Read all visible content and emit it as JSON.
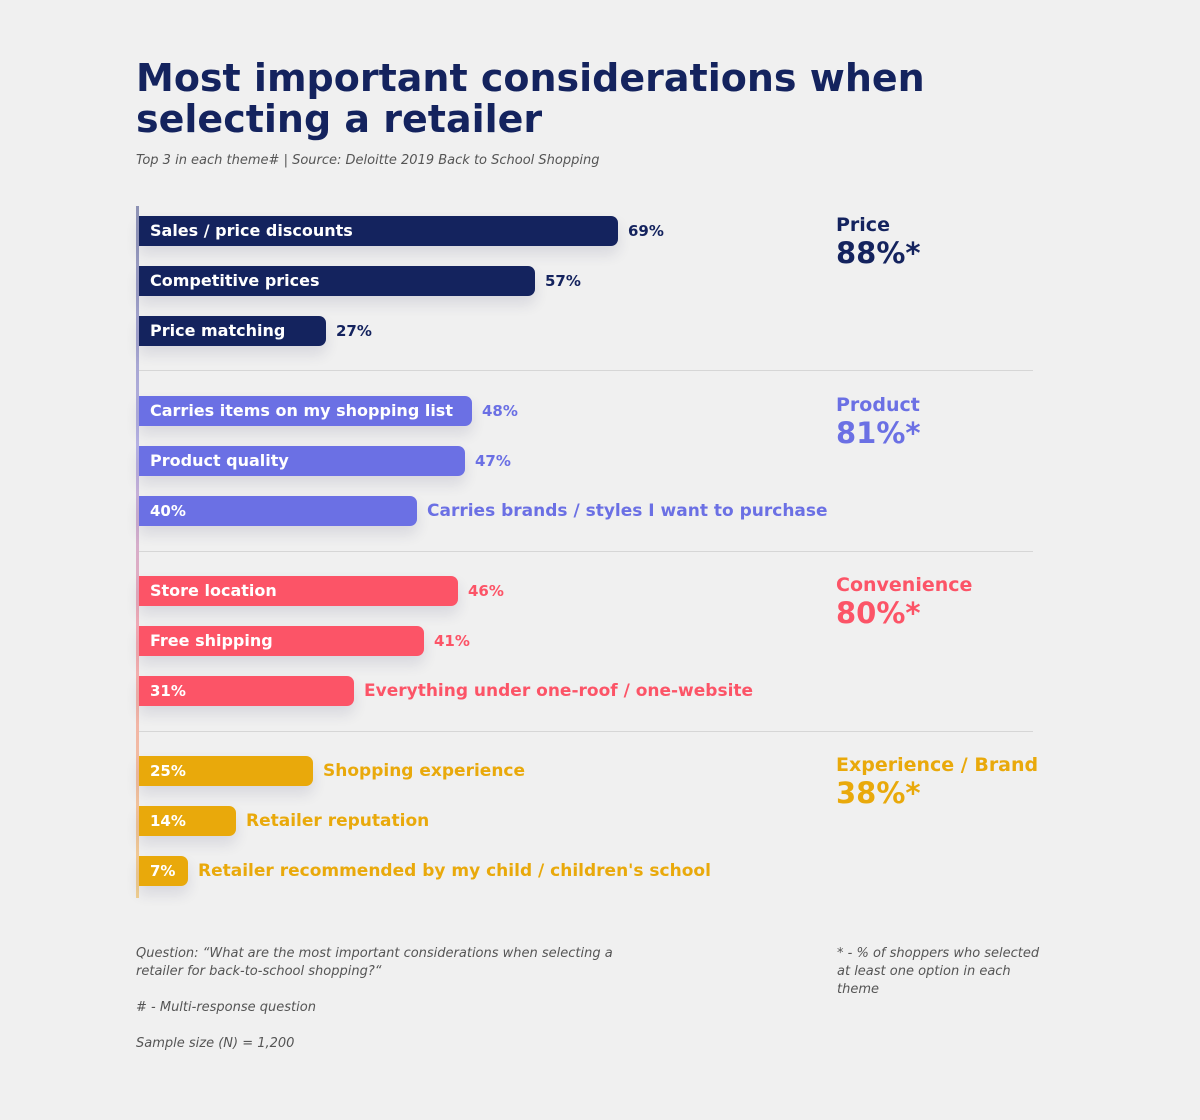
{
  "title": "Most important considerations when selecting a retailer",
  "subtitle": "Top 3 in each theme#  |  Source: Deloitte 2019 Back to School Shopping",
  "chart_data": {
    "type": "bar",
    "orientation": "horizontal",
    "xlim": [
      0,
      100
    ],
    "unit": "%",
    "groups": [
      {
        "theme": "Price",
        "total": "88%*",
        "color": "#14235e",
        "bars": [
          {
            "label": "Sales / price discounts",
            "value": 69,
            "value_text": "69%",
            "label_inside": true
          },
          {
            "label": "Competitive prices",
            "value": 57,
            "value_text": "57%",
            "label_inside": true
          },
          {
            "label": "Price matching",
            "value": 27,
            "value_text": "27%",
            "label_inside": true
          }
        ]
      },
      {
        "theme": "Product",
        "total": "81%*",
        "color": "#6b70e4",
        "bars": [
          {
            "label": "Carries items on my shopping list",
            "value": 48,
            "value_text": "48%",
            "label_inside": true
          },
          {
            "label": "Product quality",
            "value": 47,
            "value_text": "47%",
            "label_inside": true
          },
          {
            "label": "Carries brands / styles I want to purchase",
            "value": 40,
            "value_text": "40%",
            "label_inside": false
          }
        ]
      },
      {
        "theme": "Convenience",
        "total": "80%*",
        "color": "#fc5467",
        "bars": [
          {
            "label": "Store location",
            "value": 46,
            "value_text": "46%",
            "label_inside": true
          },
          {
            "label": "Free shipping",
            "value": 41,
            "value_text": "41%",
            "label_inside": true
          },
          {
            "label": "Everything under one-roof / one-website",
            "value": 31,
            "value_text": "31%",
            "label_inside": false
          }
        ]
      },
      {
        "theme": "Experience / Brand",
        "total": "38%*",
        "color": "#e9a90b",
        "bars": [
          {
            "label": "Shopping experience",
            "value": 25,
            "value_text": "25%",
            "label_inside": false
          },
          {
            "label": "Retailer reputation",
            "value": 14,
            "value_text": "14%",
            "label_inside": false
          },
          {
            "label": "Retailer recommended by my child / children's school",
            "value": 7,
            "value_text": "7%",
            "label_inside": false
          }
        ]
      }
    ]
  },
  "footnotes": {
    "question": "Question: “What are the most important considerations when selecting a retailer for back-to-school shopping?“",
    "multi_response": "# - Multi-response question",
    "sample_size": "Sample size (N) = 1,200",
    "asterisk": "* - % of shoppers who selected at least one option in each theme"
  }
}
